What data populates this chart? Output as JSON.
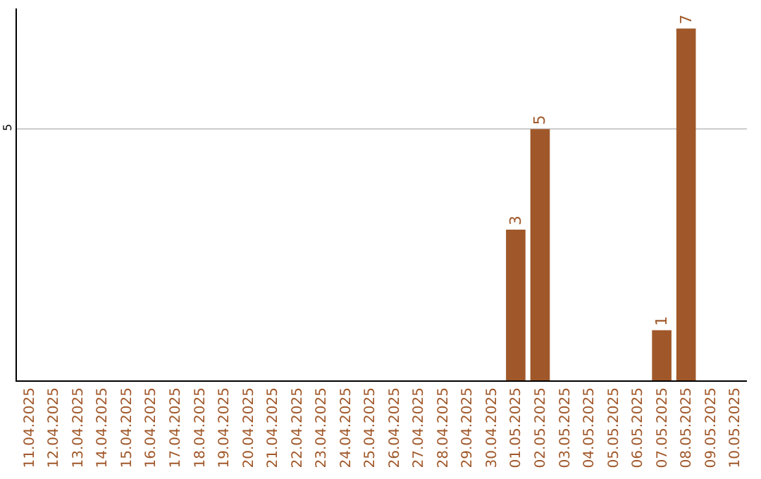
{
  "chart_data": {
    "type": "bar",
    "categories": [
      "11.04.2025",
      "12.04.2025",
      "13.04.2025",
      "14.04.2025",
      "15.04.2025",
      "16.04.2025",
      "17.04.2025",
      "18.04.2025",
      "19.04.2025",
      "20.04.2025",
      "21.04.2025",
      "22.04.2025",
      "23.04.2025",
      "24.04.2025",
      "25.04.2025",
      "26.04.2025",
      "27.04.2025",
      "28.04.2025",
      "29.04.2025",
      "30.04.2025",
      "01.05.2025",
      "02.05.2025",
      "03.05.2025",
      "04.05.2025",
      "05.05.2025",
      "06.05.2025",
      "07.05.2025",
      "08.05.2025",
      "09.05.2025",
      "10.05.2025"
    ],
    "values": [
      null,
      null,
      null,
      null,
      null,
      null,
      null,
      null,
      null,
      null,
      null,
      null,
      null,
      null,
      null,
      null,
      null,
      null,
      null,
      null,
      3,
      5,
      null,
      null,
      null,
      null,
      1,
      7,
      null,
      null
    ],
    "data_labels": true,
    "ylim": [
      0,
      7.4
    ],
    "yticks": [
      5
    ],
    "grid": "y",
    "color": "#a0582a"
  }
}
